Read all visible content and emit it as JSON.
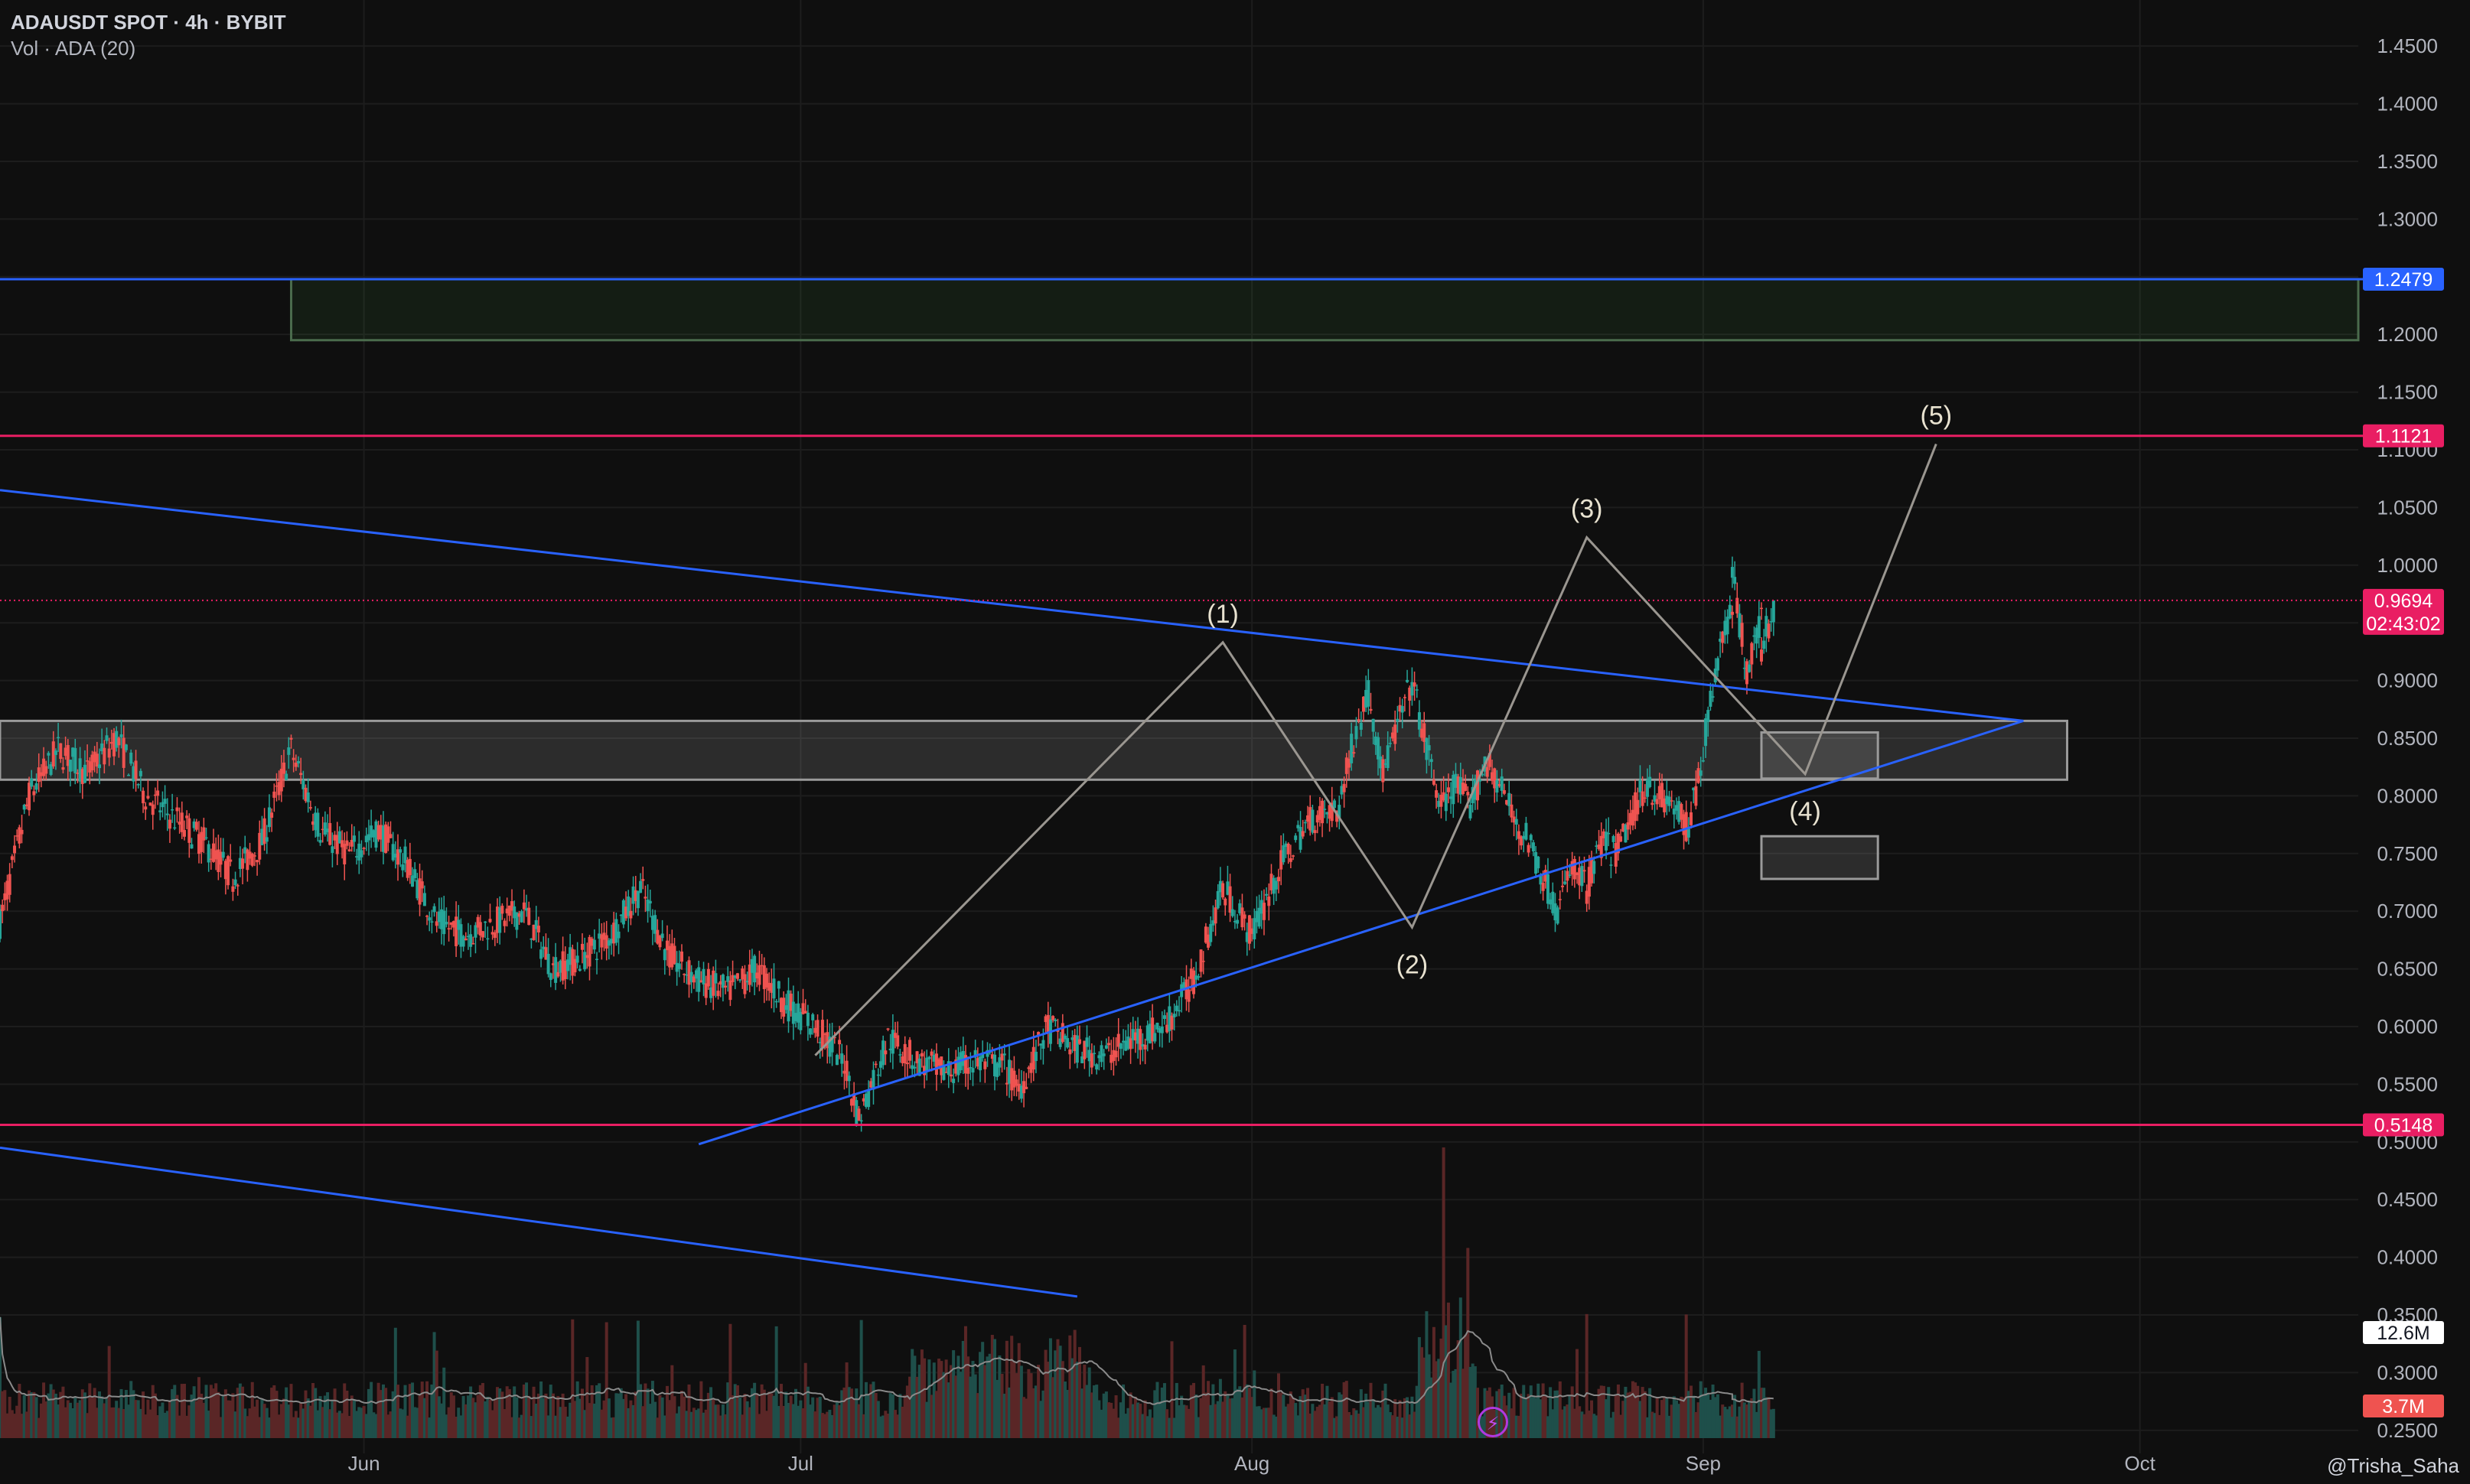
{
  "header": {
    "title": "ADAUSDT SPOT · 4h · BYBIT",
    "indicator": "Vol · ADA (20)"
  },
  "watermark": "@Trisha_Saha",
  "colors": {
    "background": "#0f0f0f",
    "grid": "#1d1d1d",
    "up": "#26a69a",
    "down": "#ef5350",
    "blue_line": "#2962ff",
    "pink_line": "#e91e63",
    "wave": "#9a9690",
    "box_green": "#4caf50"
  },
  "chart_data": {
    "type": "candlestick",
    "symbol": "ADAUSDT",
    "timeframe": "4h",
    "exchange": "BYBIT",
    "x_ticks": [
      "Jun",
      "Jul",
      "Aug",
      "Sep",
      "Oct"
    ],
    "x_tick_dates": [
      "2024-06-01",
      "2024-07-01",
      "2024-08-01",
      "2024-09-01",
      "2024-10-01"
    ],
    "y_ticks": [
      "1.4500",
      "1.4000",
      "1.3500",
      "1.3000",
      "1.2500",
      "1.2000",
      "1.1500",
      "1.1000",
      "1.0500",
      "1.0000",
      "0.9500",
      "0.9000",
      "0.8500",
      "0.8000",
      "0.7500",
      "0.7000",
      "0.6500",
      "0.6000",
      "0.5500",
      "0.5000",
      "0.4500",
      "0.4000",
      "0.3500",
      "0.3000",
      "0.2500"
    ],
    "ylim": [
      0.23,
      1.47
    ],
    "xlim": [
      "2024-05-07",
      "2024-10-16"
    ],
    "price_path": [
      [
        "2024-05-07",
        0.69
      ],
      [
        "2024-05-09",
        0.8
      ],
      [
        "2024-05-11",
        0.84
      ],
      [
        "2024-05-13",
        0.82
      ],
      [
        "2024-05-15",
        0.85
      ],
      [
        "2024-05-17",
        0.8
      ],
      [
        "2024-05-19",
        0.78
      ],
      [
        "2024-05-21",
        0.76
      ],
      [
        "2024-05-23",
        0.73
      ],
      [
        "2024-05-25",
        0.76
      ],
      [
        "2024-05-27",
        0.84
      ],
      [
        "2024-05-29",
        0.77
      ],
      [
        "2024-05-31",
        0.75
      ],
      [
        "2024-06-02",
        0.77
      ],
      [
        "2024-06-04",
        0.74
      ],
      [
        "2024-06-06",
        0.69
      ],
      [
        "2024-06-08",
        0.68
      ],
      [
        "2024-06-10",
        0.69
      ],
      [
        "2024-06-12",
        0.7
      ],
      [
        "2024-06-14",
        0.65
      ],
      [
        "2024-06-16",
        0.66
      ],
      [
        "2024-06-18",
        0.68
      ],
      [
        "2024-06-20",
        0.72
      ],
      [
        "2024-06-22",
        0.66
      ],
      [
        "2024-06-24",
        0.64
      ],
      [
        "2024-06-26",
        0.63
      ],
      [
        "2024-06-28",
        0.65
      ],
      [
        "2024-06-30",
        0.62
      ],
      [
        "2024-07-02",
        0.6
      ],
      [
        "2024-07-04",
        0.57
      ],
      [
        "2024-07-05",
        0.52
      ],
      [
        "2024-07-07",
        0.59
      ],
      [
        "2024-07-09",
        0.57
      ],
      [
        "2024-07-11",
        0.56
      ],
      [
        "2024-07-13",
        0.57
      ],
      [
        "2024-07-15",
        0.565
      ],
      [
        "2024-07-16",
        0.545
      ],
      [
        "2024-07-18",
        0.6
      ],
      [
        "2024-07-20",
        0.58
      ],
      [
        "2024-07-22",
        0.575
      ],
      [
        "2024-07-24",
        0.59
      ],
      [
        "2024-07-26",
        0.6
      ],
      [
        "2024-07-28",
        0.64
      ],
      [
        "2024-07-30",
        0.72
      ],
      [
        "2024-08-01",
        0.68
      ],
      [
        "2024-08-03",
        0.74
      ],
      [
        "2024-08-05",
        0.78
      ],
      [
        "2024-08-07",
        0.79
      ],
      [
        "2024-08-08",
        0.85
      ],
      [
        "2024-08-09",
        0.89
      ],
      [
        "2024-08-10",
        0.82
      ],
      [
        "2024-08-11",
        0.86
      ],
      [
        "2024-08-12",
        0.9
      ],
      [
        "2024-08-13",
        0.84
      ],
      [
        "2024-08-14",
        0.79
      ],
      [
        "2024-08-15",
        0.81
      ],
      [
        "2024-08-16",
        0.79
      ],
      [
        "2024-08-17",
        0.83
      ],
      [
        "2024-08-18",
        0.81
      ],
      [
        "2024-08-19",
        0.78
      ],
      [
        "2024-08-20",
        0.76
      ],
      [
        "2024-08-21",
        0.73
      ],
      [
        "2024-08-22",
        0.7
      ],
      [
        "2024-08-23",
        0.74
      ],
      [
        "2024-08-24",
        0.72
      ],
      [
        "2024-08-25",
        0.76
      ],
      [
        "2024-08-26",
        0.75
      ],
      [
        "2024-08-27",
        0.78
      ],
      [
        "2024-08-28",
        0.81
      ],
      [
        "2024-08-29",
        0.8
      ],
      [
        "2024-08-30",
        0.79
      ],
      [
        "2024-08-31",
        0.77
      ],
      [
        "2024-09-01",
        0.84
      ],
      [
        "2024-09-02",
        0.92
      ],
      [
        "2024-09-03",
        0.97
      ],
      [
        "2024-09-03",
        0.99
      ],
      [
        "2024-09-04",
        0.91
      ],
      [
        "2024-09-05",
        0.95
      ],
      [
        "2024-09-05",
        0.93
      ],
      [
        "2024-09-06",
        0.9694
      ]
    ],
    "current_price": "0.9694",
    "countdown": "02:43:02",
    "volume": {
      "label_ma": "12.6M",
      "label_last": "3.7M"
    },
    "horizontal_lines": [
      {
        "price": 1.2479,
        "label": "1.2479",
        "color": "#2962ff"
      },
      {
        "price": 1.1121,
        "label": "1.1121",
        "color": "#e91e63"
      },
      {
        "price": 0.5148,
        "label": "0.5148",
        "color": "#e91e63"
      }
    ],
    "trendlines": [
      {
        "from": [
          "2024-05-07",
          1.065
        ],
        "to": [
          "2024-09-23",
          0.865
        ]
      },
      {
        "from": [
          "2024-06-24",
          0.498
        ],
        "to": [
          "2024-09-23",
          0.865
        ]
      },
      {
        "from": [
          "2024-05-07",
          0.495
        ],
        "to": [
          "2024-07-20",
          0.366
        ]
      }
    ],
    "zones": [
      {
        "from": "2024-05-27",
        "to": "2024-10-16",
        "top": 1.2479,
        "bottom": 1.195,
        "color": "#4caf50"
      },
      {
        "from": "2024-05-07",
        "to": "2024-09-26",
        "top": 0.865,
        "bottom": 0.814,
        "color": "#ffffff"
      },
      {
        "from": "2024-09-05",
        "to": "2024-09-13",
        "top": 0.855,
        "bottom": 0.815,
        "color": "#ffffff"
      },
      {
        "from": "2024-09-05",
        "to": "2024-09-13",
        "top": 0.765,
        "bottom": 0.728,
        "color": "#ffffff"
      }
    ],
    "wave_labels": [
      {
        "label": "(1)",
        "date": "2024-07-30",
        "price": 0.933,
        "pos": "above"
      },
      {
        "label": "(2)",
        "date": "2024-08-12",
        "price": 0.686,
        "pos": "below"
      },
      {
        "label": "(3)",
        "date": "2024-08-24",
        "price": 1.024,
        "pos": "above"
      },
      {
        "label": "(4)",
        "date": "2024-09-08",
        "price": 0.819,
        "pos": "below"
      },
      {
        "label": "(5)",
        "date": "2024-09-17",
        "price": 1.105,
        "pos": "above"
      }
    ]
  }
}
